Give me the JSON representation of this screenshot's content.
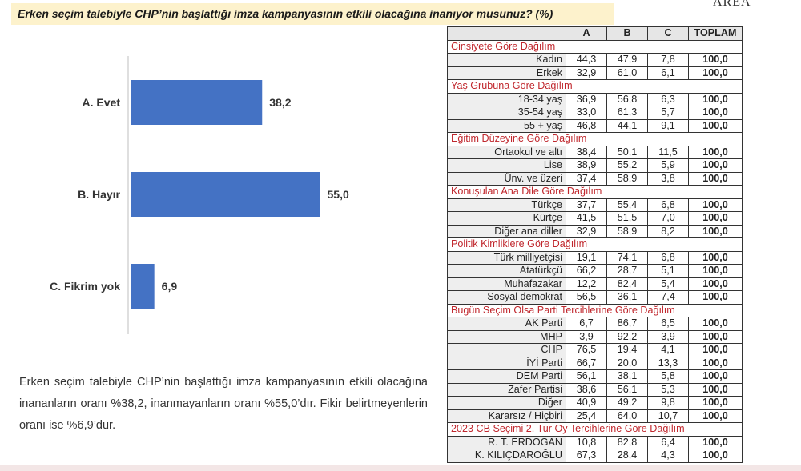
{
  "header": {
    "title": "Erken seçim talebiyle CHP’nin başlattığı imza kampanyasının etkili olacağına inanıyor musunuz? (%)",
    "logo_text": "AREA"
  },
  "chart_data": {
    "type": "bar",
    "orientation": "horizontal",
    "categories": [
      "A. Evet",
      "B. Hayır",
      "C. Fikrim yok"
    ],
    "values": [
      38.2,
      55.0,
      6.9
    ],
    "value_labels": [
      "38,2",
      "55,0",
      "6,9"
    ],
    "bar_color": "#4472c4",
    "xlim": [
      0,
      100
    ],
    "grid": false,
    "legend": "none"
  },
  "description": "Erken seçim talebiyle CHP’nin başlattığı imza kampanyasının etkili olacağına inananların oranı %38,2, inanmayanların oranı %55,0’dır. Fikir belirtmeyenlerin oranı ise %6,9’dur.",
  "table": {
    "headers": [
      "A",
      "B",
      "C",
      "TOPLAM"
    ],
    "rows": [
      {
        "type": "section",
        "label": "Cinsiyete Göre Dağılım"
      },
      {
        "type": "data",
        "label": "Kadın",
        "a": "44,3",
        "b": "47,9",
        "c": "7,8",
        "total": "100,0"
      },
      {
        "type": "data",
        "label": "Erkek",
        "a": "32,9",
        "b": "61,0",
        "c": "6,1",
        "total": "100,0"
      },
      {
        "type": "section",
        "label": "Yaş Grubuna Göre Dağılım"
      },
      {
        "type": "data",
        "label": "18-34 yaş",
        "a": "36,9",
        "b": "56,8",
        "c": "6,3",
        "total": "100,0"
      },
      {
        "type": "data",
        "label": "35-54 yaş",
        "a": "33,0",
        "b": "61,3",
        "c": "5,7",
        "total": "100,0"
      },
      {
        "type": "data",
        "label": "55 + yaş",
        "a": "46,8",
        "b": "44,1",
        "c": "9,1",
        "total": "100,0"
      },
      {
        "type": "section",
        "label": "Eğitim Düzeyine Göre Dağılım"
      },
      {
        "type": "data",
        "label": "Ortaokul ve altı",
        "a": "38,4",
        "b": "50,1",
        "c": "11,5",
        "total": "100,0"
      },
      {
        "type": "data",
        "label": "Lise",
        "a": "38,9",
        "b": "55,2",
        "c": "5,9",
        "total": "100,0"
      },
      {
        "type": "data",
        "label": "Ünv. ve üzeri",
        "a": "37,4",
        "b": "58,9",
        "c": "3,8",
        "total": "100,0"
      },
      {
        "type": "section",
        "label": "Konuşulan Ana Dile Göre Dağılım"
      },
      {
        "type": "data",
        "label": "Türkçe",
        "a": "37,7",
        "b": "55,4",
        "c": "6,8",
        "total": "100,0"
      },
      {
        "type": "data",
        "label": "Kürtçe",
        "a": "41,5",
        "b": "51,5",
        "c": "7,0",
        "total": "100,0"
      },
      {
        "type": "data",
        "label": "Diğer ana diller",
        "a": "32,9",
        "b": "58,9",
        "c": "8,2",
        "total": "100,0"
      },
      {
        "type": "section",
        "label": "Politik Kimliklere Göre Dağılım"
      },
      {
        "type": "data",
        "label": "Türk milliyetçisi",
        "a": "19,1",
        "b": "74,1",
        "c": "6,8",
        "total": "100,0"
      },
      {
        "type": "data",
        "label": "Atatürkçü",
        "a": "66,2",
        "b": "28,7",
        "c": "5,1",
        "total": "100,0"
      },
      {
        "type": "data",
        "label": "Muhafazakar",
        "a": "12,2",
        "b": "82,4",
        "c": "5,4",
        "total": "100,0"
      },
      {
        "type": "data",
        "label": "Sosyal demokrat",
        "a": "56,5",
        "b": "36,1",
        "c": "7,4",
        "total": "100,0"
      },
      {
        "type": "section",
        "label": "Bugün Seçim Olsa Parti Tercihlerine Göre Dağılım"
      },
      {
        "type": "data",
        "label": "AK Parti",
        "a": "6,7",
        "b": "86,7",
        "c": "6,5",
        "total": "100,0"
      },
      {
        "type": "data",
        "label": "MHP",
        "a": "3,9",
        "b": "92,2",
        "c": "3,9",
        "total": "100,0"
      },
      {
        "type": "data",
        "label": "CHP",
        "a": "76,5",
        "b": "19,4",
        "c": "4,1",
        "total": "100,0"
      },
      {
        "type": "data",
        "label": "İYİ Parti",
        "a": "66,7",
        "b": "20,0",
        "c": "13,3",
        "total": "100,0"
      },
      {
        "type": "data",
        "label": "DEM Parti",
        "a": "56,1",
        "b": "38,1",
        "c": "5,8",
        "total": "100,0"
      },
      {
        "type": "data",
        "label": "Zafer Partisi",
        "a": "38,6",
        "b": "56,1",
        "c": "5,3",
        "total": "100,0"
      },
      {
        "type": "data",
        "label": "Diğer",
        "a": "40,9",
        "b": "49,2",
        "c": "9,8",
        "total": "100,0"
      },
      {
        "type": "data",
        "label": "Kararsız / Hiçbiri",
        "a": "25,4",
        "b": "64,0",
        "c": "10,7",
        "total": "100,0"
      },
      {
        "type": "section",
        "label": "2023 CB Seçimi 2. Tur Oy Tercihlerine Göre Dağılım"
      },
      {
        "type": "data",
        "label": "R. T. ERDOĞAN",
        "a": "10,8",
        "b": "82,8",
        "c": "6,4",
        "total": "100,0"
      },
      {
        "type": "data",
        "label": "K. KILIÇDAROĞLU",
        "a": "67,3",
        "b": "28,4",
        "c": "4,3",
        "total": "100,0"
      }
    ]
  }
}
